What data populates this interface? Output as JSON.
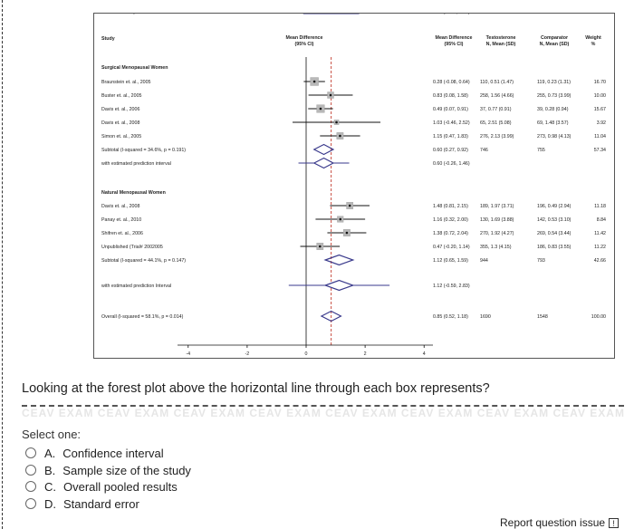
{
  "question": {
    "text": "Looking at the forest plot above the horizontal line through each box represents?",
    "select_label": "Select one:",
    "options": [
      {
        "letter": "A.",
        "label": "Confidence interval"
      },
      {
        "letter": "B.",
        "label": "Sample size of the study"
      },
      {
        "letter": "C.",
        "label": "Overall pooled results"
      },
      {
        "letter": "D.",
        "label": "Standard error"
      }
    ],
    "report_label": "Report question issue",
    "report_icon": "!",
    "watermark_text": "CEAV EXAM CEAV EXAM CEAV EXAM CEAV EXAM CEAV EXAM CEAV EXAM CEAV EXAM CEAV EXAM CEAV EXAM"
  },
  "chart_data": {
    "type": "forest",
    "headers": {
      "study": "Study",
      "md": "Mean Difference\n(95% CI)",
      "md_col": "Mean Difference\n(95% CI)",
      "testo": "Testosterone\nN, Mean (SD)",
      "comp": "Comparator\nN, Mean (SD)",
      "weight": "Weight\n%"
    },
    "xlim": [
      -4.3,
      4.3
    ],
    "x_ticks": [
      "-4",
      "-2",
      "0",
      "2",
      "4"
    ],
    "x_tick_values": [
      -4,
      -2,
      0,
      2,
      4
    ],
    "favours_left": "Favours Comparator",
    "favours_right": "Favours Testosterone",
    "overall_line": 0.85,
    "colors": {
      "box": "#b8b8b8",
      "diamond": "#3a3a8c",
      "ref_dashed": "#c0392b"
    },
    "rows": [
      {
        "kind": "header",
        "label": "Surgical Menopausal Women"
      },
      {
        "kind": "study",
        "label": "Braunstein et. al., 2005",
        "md": 0.28,
        "lo": -0.08,
        "hi": 0.64,
        "ci_text": "0.28 (-0.08, 0.64)",
        "testo": "110, 0.51 (1.47)",
        "comp": "119, 0.23 (1.31)",
        "weight": "16.70"
      },
      {
        "kind": "study",
        "label": "Buster et. al., 2005",
        "md": 0.83,
        "lo": 0.08,
        "hi": 1.58,
        "ci_text": "0.83 (0.08, 1.58)",
        "testo": "258, 1.56 (4.66)",
        "comp": "255, 0.73 (3.99)",
        "weight": "10.00"
      },
      {
        "kind": "study",
        "label": "Davis et. al., 2006",
        "md": 0.49,
        "lo": 0.07,
        "hi": 0.91,
        "ci_text": "0.49 (0.07, 0.91)",
        "testo": "37, 0.77 (0.91)",
        "comp": "39, 0.28 (0.94)",
        "weight": "15.67"
      },
      {
        "kind": "study",
        "label": "Davis et. al., 2008",
        "md": 1.03,
        "lo": -0.46,
        "hi": 2.52,
        "ci_text": "1.03 (-0.46, 2.52)",
        "testo": "65, 2.51 (5.08)",
        "comp": "69, 1.48 (3.57)",
        "weight": "3.92"
      },
      {
        "kind": "study",
        "label": "Simon et. al., 2005",
        "md": 1.15,
        "lo": 0.47,
        "hi": 1.83,
        "ci_text": "1.15 (0.47, 1.83)",
        "testo": "276, 2.13 (3.99)",
        "comp": "273, 0.98 (4.13)",
        "weight": "11.04"
      },
      {
        "kind": "subtotal",
        "label": "Subtotal (I-squared = 34.6%, p = 0.191)",
        "md": 0.6,
        "lo": 0.27,
        "hi": 0.92,
        "ci_text": "0.60 (0.27, 0.92)",
        "testo": "746",
        "comp": "755",
        "weight": "57.34"
      },
      {
        "kind": "pred",
        "label": "with estimated prediction interval",
        "md": 0.6,
        "lo": -0.26,
        "hi": 1.46,
        "ci_text": "0.60 (-0.26, 1.46)",
        "testo": "",
        "comp": "",
        "weight": ""
      },
      {
        "kind": "header",
        "label": "Natural Menopausal Women"
      },
      {
        "kind": "study",
        "label": "Davis et. al., 2008",
        "md": 1.48,
        "lo": 0.81,
        "hi": 2.15,
        "ci_text": "1.48 (0.81, 2.15)",
        "testo": "189, 1.97 (3.71)",
        "comp": "196, 0.49 (2.94)",
        "weight": "11.18"
      },
      {
        "kind": "study",
        "label": "Panay et. al., 2010",
        "md": 1.16,
        "lo": 0.32,
        "hi": 2.0,
        "ci_text": "1.16 (0.32, 2.00)",
        "testo": "130, 1.69 (3.88)",
        "comp": "142, 0.53 (3.10)",
        "weight": "8.84"
      },
      {
        "kind": "study",
        "label": "Shifren et. al., 2006",
        "md": 1.38,
        "lo": 0.72,
        "hi": 2.04,
        "ci_text": "1.38 (0.72, 2.04)",
        "testo": "270, 1.92 (4.27)",
        "comp": "269, 0.54 (3.44)",
        "weight": "11.42"
      },
      {
        "kind": "study",
        "label": "Unpublished (Trial# 2002005",
        "md": 0.47,
        "lo": -0.2,
        "hi": 1.14,
        "ci_text": "0.47 (-0.20, 1.14)",
        "testo": "355, 1.3 (4.15)",
        "comp": "186, 0.83 (3.55)",
        "weight": "11.22"
      },
      {
        "kind": "subtotal",
        "label": "Subtotal (I-squared = 44.1%, p = 0.147)",
        "md": 1.12,
        "lo": 0.65,
        "hi": 1.59,
        "ci_text": "1.12 (0.65, 1.59)",
        "testo": "944",
        "comp": "793",
        "weight": "42.66"
      },
      {
        "kind": "pred",
        "label": "with estimated prediction Interval",
        "md": 1.12,
        "lo": -0.59,
        "hi": 2.83,
        "ci_text": "1.12 (-0.59, 2.83)",
        "testo": "",
        "comp": "",
        "weight": ""
      },
      {
        "kind": "gap",
        "label": ""
      },
      {
        "kind": "subtotal",
        "label": "Overall (I-squared = 58.1%, p = 0.014)",
        "md": 0.85,
        "lo": 0.52,
        "hi": 1.18,
        "ci_text": "0.85 (0.52, 1.18)",
        "testo": "1690",
        "comp": "1548",
        "weight": "100.00"
      },
      {
        "kind": "pred",
        "label": "with estimated prediction interval",
        "md": 0.85,
        "lo": -0.1,
        "hi": 1.8,
        "ci_text": "0.85 (-0.10, 1.80)",
        "testo": "",
        "comp": "",
        "weight": ""
      }
    ]
  }
}
